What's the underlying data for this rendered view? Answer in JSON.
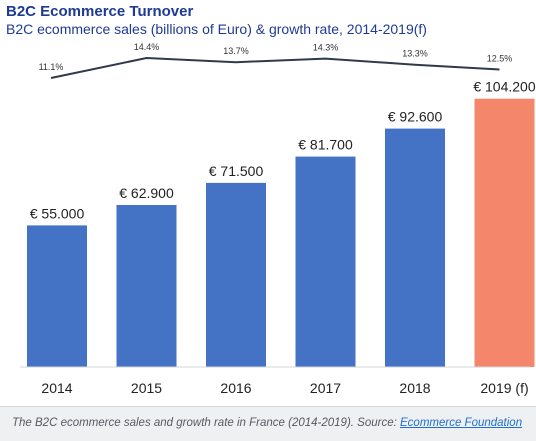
{
  "chart_data": {
    "type": "bar",
    "title": "B2C Ecommerce Turnover",
    "subtitle": "B2C ecommerce sales (billions of Euro) & growth rate, 2014-2019(f)",
    "categories": [
      "2014",
      "2015",
      "2016",
      "2017",
      "2018",
      "2019 (f)"
    ],
    "series": [
      {
        "values": [
          55.0,
          62.9,
          71.5,
          81.7,
          92.6,
          104.2
        ],
        "labels": [
          "€ 55.000",
          "€ 62.900",
          "€ 71.500",
          "€ 81.700",
          "€ 92.600",
          "€ 104.200"
        ]
      }
    ],
    "growth_rate": {
      "type": "line",
      "values": [
        11.1,
        14.4,
        13.7,
        14.3,
        13.3,
        12.5
      ],
      "labels": [
        "11.1%",
        "14.4%",
        "13.7%",
        "14.3%",
        "13.3%",
        "12.5%"
      ]
    },
    "ylim": [
      0,
      110
    ],
    "grid": false,
    "colors": {
      "bar": "#4472c4",
      "forecast_bar": "#f4866b",
      "line": "#2f3a4a",
      "title": "#1f3a93"
    }
  },
  "caption": {
    "text": "The B2C ecommerce sales and growth rate in France (2014-2019). Source: ",
    "link": "Ecommerce Foundation"
  }
}
